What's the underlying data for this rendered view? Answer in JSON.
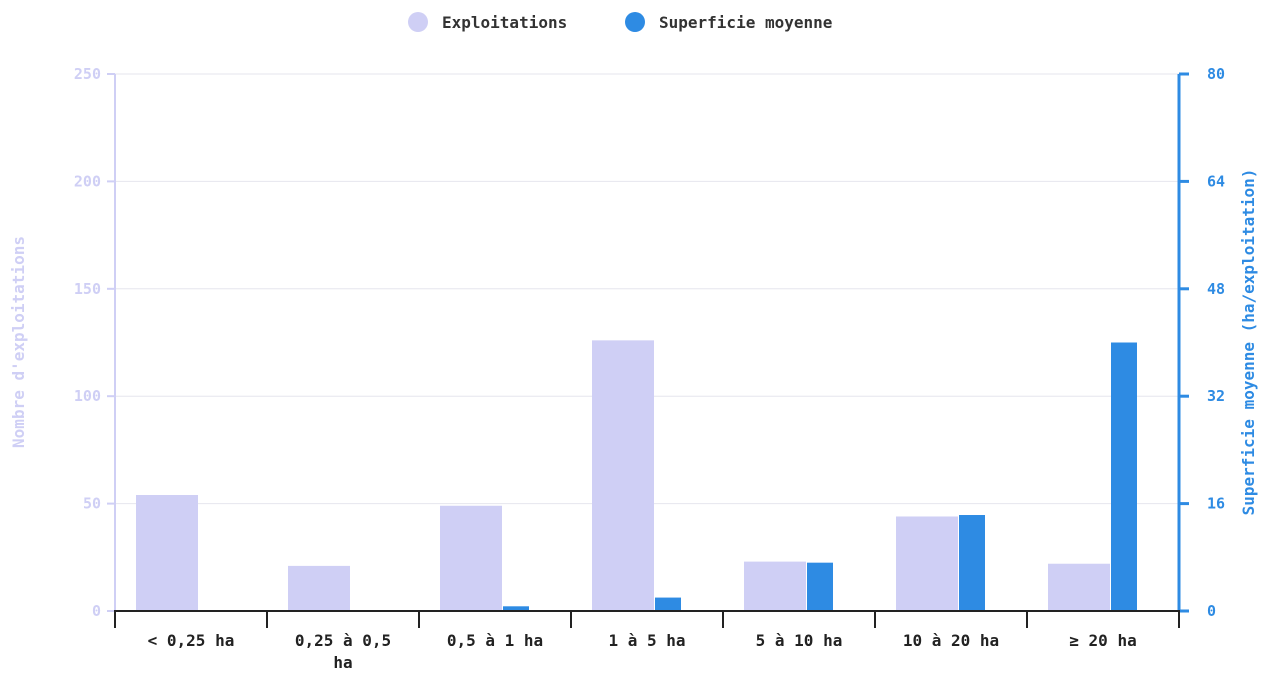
{
  "chart_data": {
    "type": "bar",
    "title": "",
    "categories": [
      [
        "< 0,25 ha"
      ],
      [
        "0,25 à 0,5",
        "ha"
      ],
      [
        "0,5 à 1 ha"
      ],
      [
        "1 à 5 ha"
      ],
      [
        "5 à 10 ha"
      ],
      [
        "10 à 20 ha"
      ],
      [
        "≥ 20 ha"
      ]
    ],
    "series": [
      {
        "name": "Exploitations",
        "axis": "left",
        "color": "#cfcff5",
        "values": [
          54,
          21,
          49,
          126,
          23,
          44,
          22
        ]
      },
      {
        "name": "Superficie moyenne",
        "axis": "right",
        "color": "#2e8be3",
        "values": [
          0,
          0,
          0.7,
          2,
          7.2,
          14.3,
          40
        ]
      }
    ],
    "y_left": {
      "label": "Nombre d'exploitations",
      "min": 0,
      "max": 250,
      "ticks": [
        "0",
        "50",
        "100",
        "150",
        "200",
        "250"
      ],
      "color": "#cfcff5"
    },
    "y_right": {
      "label": "Superficie moyenne (ha/exploitation)",
      "min": 0,
      "max": 80,
      "ticks": [
        "0",
        "16",
        "32",
        "48",
        "64",
        "80"
      ],
      "color": "#2e8be3"
    },
    "grid": true,
    "legend_position": "top-center"
  }
}
